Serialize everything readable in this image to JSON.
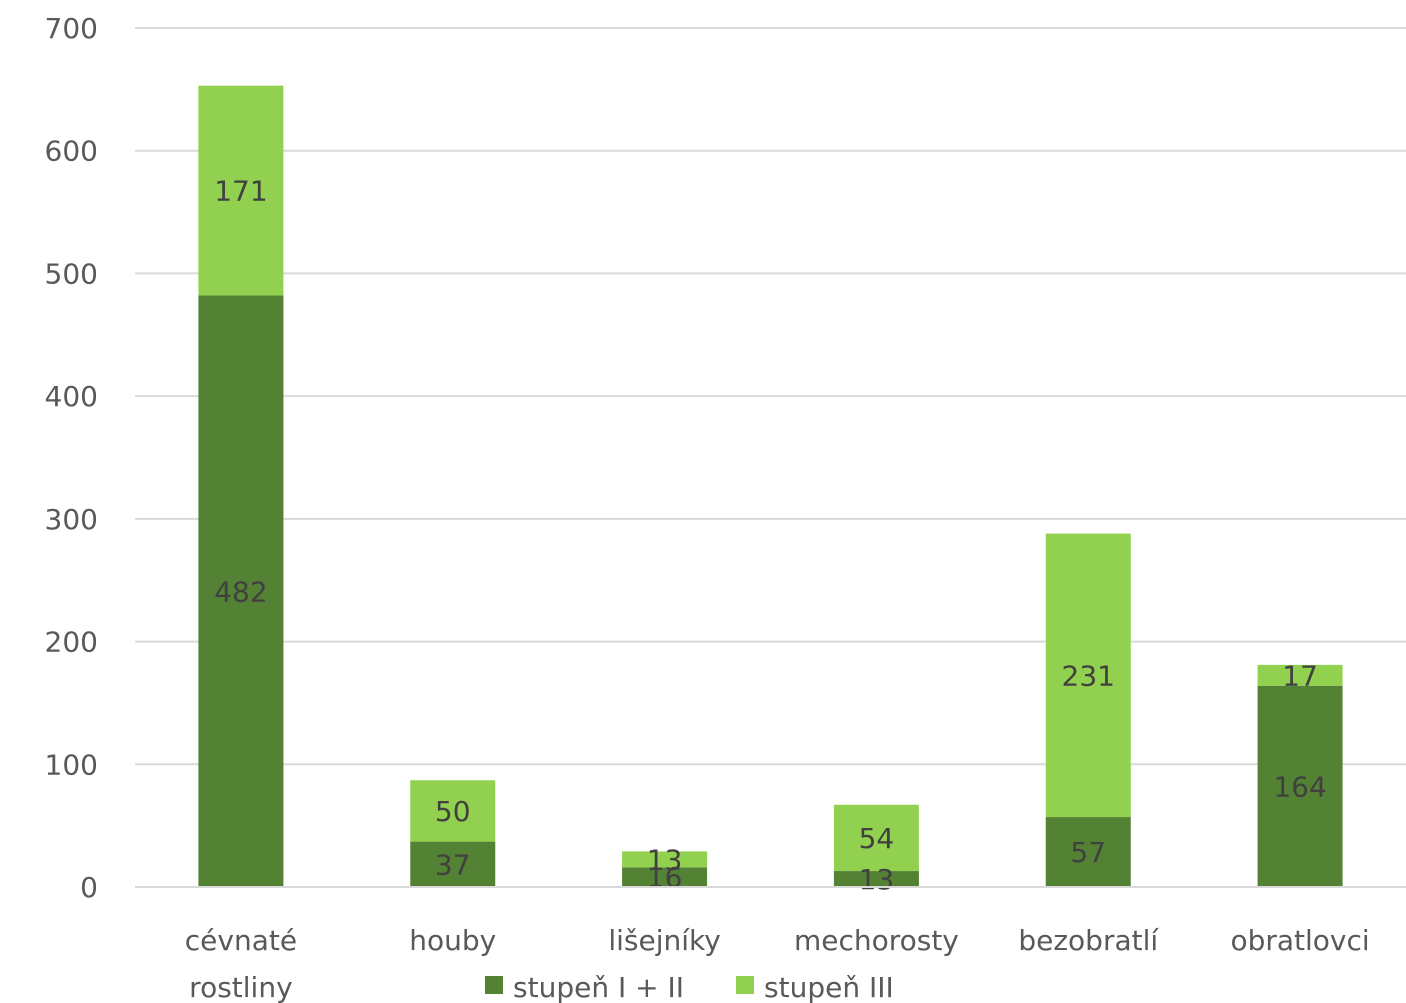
{
  "chart_data": {
    "type": "bar",
    "stacked": true,
    "categories": [
      "cévnaté rostliny",
      "houby",
      "lišejníky",
      "mechorosty",
      "bezobratlí",
      "obratlovci"
    ],
    "category_lines": [
      [
        "cévnaté",
        "rostliny"
      ],
      [
        "houby"
      ],
      [
        "lišejníky"
      ],
      [
        "mechorosty"
      ],
      [
        "bezobratlí"
      ],
      [
        "obratlovci"
      ]
    ],
    "series": [
      {
        "name": "stupeň I + II",
        "values": [
          482,
          37,
          16,
          13,
          57,
          164
        ],
        "color": "#548235"
      },
      {
        "name": "stupeň III",
        "values": [
          171,
          50,
          13,
          54,
          231,
          17
        ],
        "color": "#92d050"
      }
    ],
    "ylim": [
      0,
      700
    ],
    "yticks": [
      0,
      100,
      200,
      300,
      400,
      500,
      600,
      700
    ],
    "grid": true,
    "legend_position": "bottom",
    "title": "",
    "xlabel": "",
    "ylabel": ""
  }
}
